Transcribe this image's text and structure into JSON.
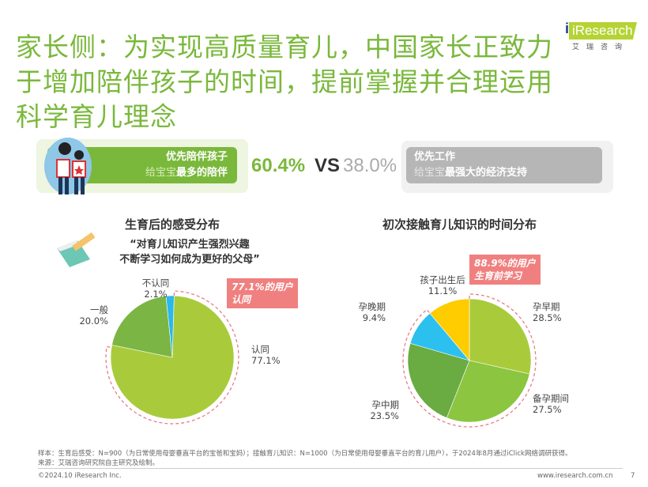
{
  "title": "家长侧：为实现高质量育儿，中国家长正致力于增加陪伴孩子的时间，提前掌握并合理运用科学育儿理念",
  "logo": {
    "text": "iResearch",
    "cn": "艾瑞咨询"
  },
  "comparison": {
    "left": {
      "line1": "优先陪伴孩子",
      "line2_light": "给宝宝",
      "line2_bold": "最多的陪伴",
      "value": "60.4%"
    },
    "vs": "VS",
    "right": {
      "line1": "优先工作",
      "line2_light": "给宝宝",
      "line2_bold": "最强大的经济支持",
      "value": "38.0%"
    }
  },
  "colors": {
    "accent": "#7ab83c",
    "callout": "#f08080"
  },
  "chart_data": [
    {
      "type": "pie",
      "title": "生育后的感受分布",
      "quote": "“对育儿知识产生强烈兴趣\n不断学习如何成为更好的父母”",
      "callout": "77.1%的用户\n认同",
      "slices": [
        {
          "label": "认同",
          "value": 77.1,
          "text": "77.1%",
          "color": "#a9cb3b"
        },
        {
          "label": "一般",
          "value": 20.0,
          "text": "20.0%",
          "color": "#7bb544"
        },
        {
          "label": "不认同",
          "value": 2.1,
          "text": "2.1%",
          "color": "#2bb8ea"
        }
      ]
    },
    {
      "type": "pie",
      "title": "初次接触育儿知识的时间分布",
      "callout": "88.9%的用户\n生育前学习",
      "slices": [
        {
          "label": "孕早期",
          "value": 28.5,
          "text": "28.5%",
          "color": "#a9cb3b"
        },
        {
          "label": "备孕期间",
          "value": 27.5,
          "text": "27.5%",
          "color": "#8cc540"
        },
        {
          "label": "孕中期",
          "value": 23.5,
          "text": "23.5%",
          "color": "#6aab42"
        },
        {
          "label": "孕晚期",
          "value": 9.4,
          "text": "9.4%",
          "color": "#2bc0ee"
        },
        {
          "label": "孩子出生后",
          "value": 11.1,
          "text": "11.1%",
          "color": "#ffcc00"
        }
      ]
    }
  ],
  "footer": {
    "sample": "样本：生育后感受：N=900（为日常使用母婴垂直平台的宝爸和宝妈）；接触育儿知识：N=1000（为日常使用母婴垂直平台的育儿用户），于2024年8月通过iClick网络调研获得。",
    "source": "来源：艾瑞咨询研究院自主研究及绘制。",
    "copyright": "©2024.10 iResearch Inc.",
    "url": "www.iresearch.com.cn",
    "page": "7"
  }
}
